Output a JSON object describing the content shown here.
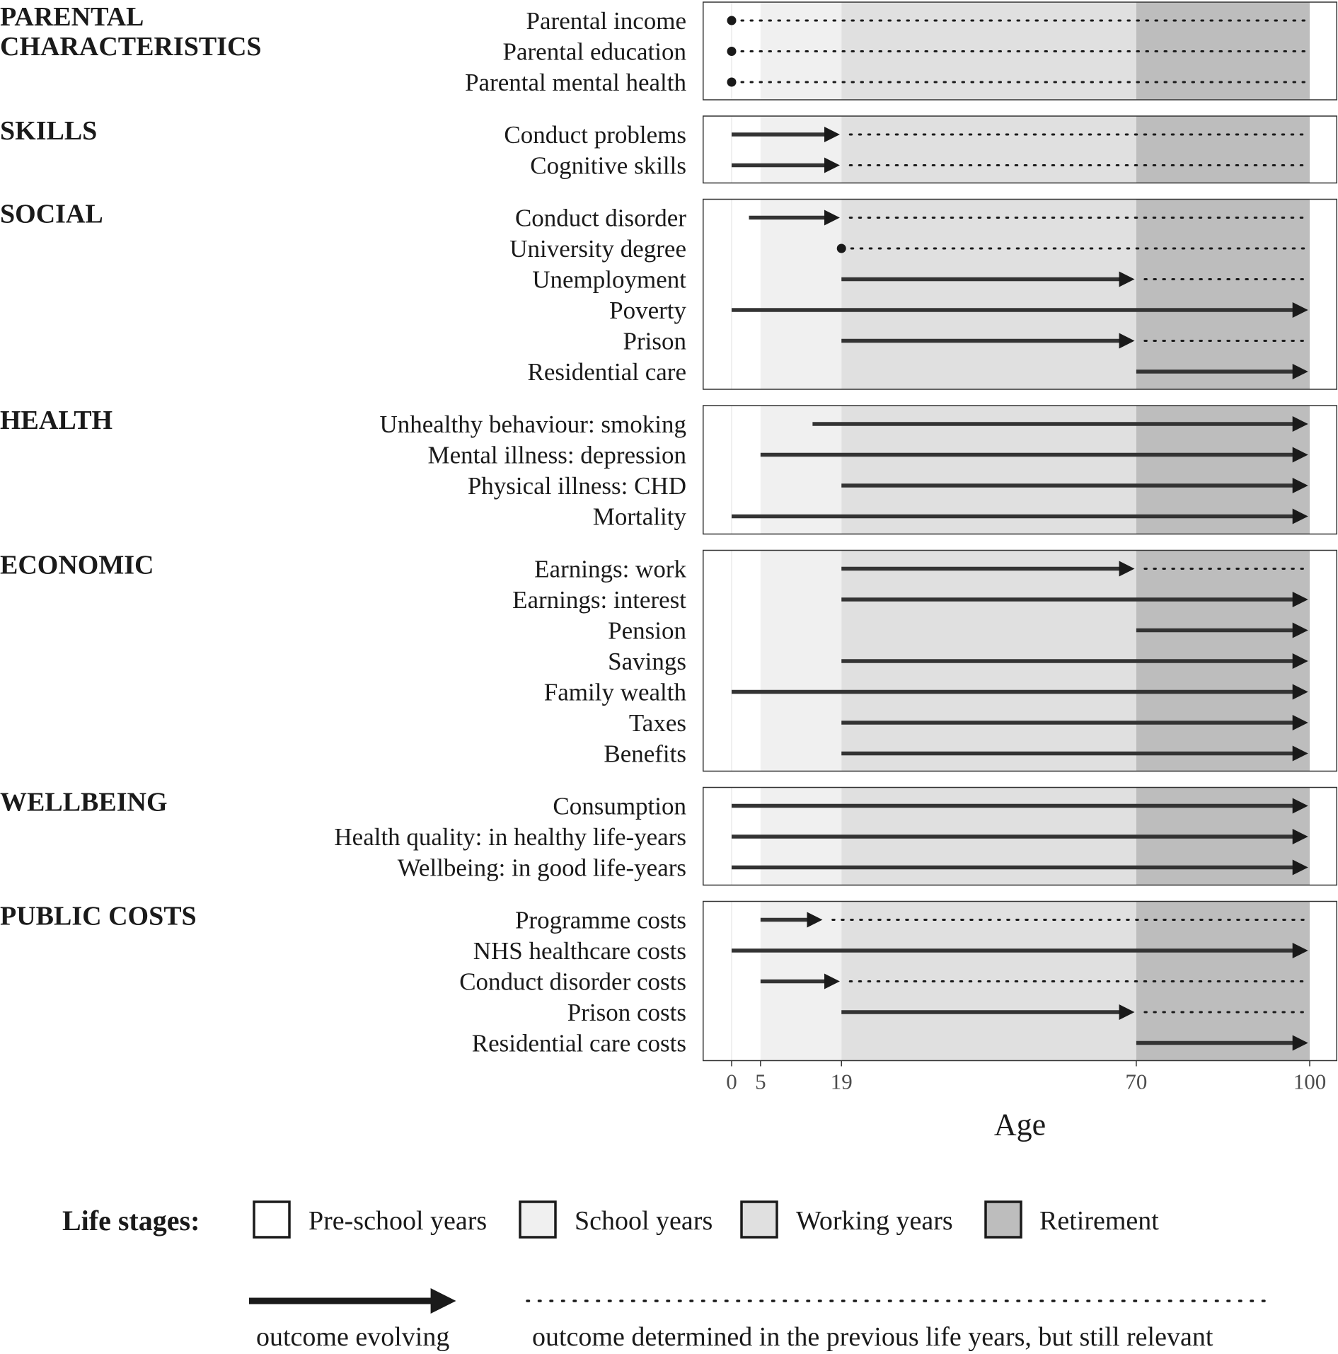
{
  "chart_data": {
    "type": "timeline",
    "xlabel": "Age",
    "x_ticks": [
      0,
      5,
      19,
      70,
      100
    ],
    "xlim": [
      0,
      100
    ],
    "life_stages": [
      {
        "name": "Pre-school years",
        "from": 0,
        "to": 5,
        "color": "#ffffff"
      },
      {
        "name": "School years",
        "from": 5,
        "to": 19,
        "color": "#f0f0f0"
      },
      {
        "name": "Working years",
        "from": 19,
        "to": 70,
        "color": "#e0e0e0"
      },
      {
        "name": "Retirement",
        "from": 70,
        "to": 100,
        "color": "#bdbdbd"
      }
    ],
    "groups": [
      {
        "title": "PARENTAL\nCHARACTERISTICS",
        "rows": [
          {
            "label": "Parental income",
            "type": "point",
            "evolve_start": 0,
            "evolve_end": 0,
            "dotted_end": 100
          },
          {
            "label": "Parental education",
            "type": "point",
            "evolve_start": 0,
            "evolve_end": 0,
            "dotted_end": 100
          },
          {
            "label": "Parental mental health",
            "type": "point",
            "evolve_start": 0,
            "evolve_end": 0,
            "dotted_end": 100
          }
        ]
      },
      {
        "title": "SKILLS",
        "rows": [
          {
            "label": "Conduct problems",
            "type": "arrow",
            "evolve_start": 0,
            "evolve_end": 19,
            "dotted_end": 100
          },
          {
            "label": "Cognitive skills",
            "type": "arrow",
            "evolve_start": 0,
            "evolve_end": 19,
            "dotted_end": 100
          }
        ]
      },
      {
        "title": "SOCIAL",
        "rows": [
          {
            "label": "Conduct disorder",
            "type": "arrow",
            "evolve_start": 3,
            "evolve_end": 19,
            "dotted_end": 100
          },
          {
            "label": "University degree",
            "type": "point",
            "evolve_start": 19,
            "evolve_end": 19,
            "dotted_end": 100
          },
          {
            "label": "Unemployment",
            "type": "arrow",
            "evolve_start": 19,
            "evolve_end": 70,
            "dotted_end": 100
          },
          {
            "label": "Poverty",
            "type": "arrow",
            "evolve_start": 0,
            "evolve_end": 100,
            "dotted_end": null
          },
          {
            "label": "Prison",
            "type": "arrow",
            "evolve_start": 19,
            "evolve_end": 70,
            "dotted_end": 100
          },
          {
            "label": "Residential care",
            "type": "arrow",
            "evolve_start": 70,
            "evolve_end": 100,
            "dotted_end": null
          }
        ]
      },
      {
        "title": "HEALTH",
        "rows": [
          {
            "label": "Unhealthy behaviour: smoking",
            "type": "arrow",
            "evolve_start": 14,
            "evolve_end": 100,
            "dotted_end": null
          },
          {
            "label": "Mental illness: depression",
            "type": "arrow",
            "evolve_start": 5,
            "evolve_end": 100,
            "dotted_end": null
          },
          {
            "label": "Physical illness: CHD",
            "type": "arrow",
            "evolve_start": 19,
            "evolve_end": 100,
            "dotted_end": null
          },
          {
            "label": "Mortality",
            "type": "arrow",
            "evolve_start": 0,
            "evolve_end": 100,
            "dotted_end": null
          }
        ]
      },
      {
        "title": "ECONOMIC",
        "rows": [
          {
            "label": "Earnings: work",
            "type": "arrow",
            "evolve_start": 19,
            "evolve_end": 70,
            "dotted_end": 100
          },
          {
            "label": "Earnings: interest",
            "type": "arrow",
            "evolve_start": 19,
            "evolve_end": 100,
            "dotted_end": null
          },
          {
            "label": "Pension",
            "type": "arrow",
            "evolve_start": 70,
            "evolve_end": 100,
            "dotted_end": null
          },
          {
            "label": "Savings",
            "type": "arrow",
            "evolve_start": 19,
            "evolve_end": 100,
            "dotted_end": null
          },
          {
            "label": "Family wealth",
            "type": "arrow",
            "evolve_start": 0,
            "evolve_end": 100,
            "dotted_end": null
          },
          {
            "label": "Taxes",
            "type": "arrow",
            "evolve_start": 19,
            "evolve_end": 100,
            "dotted_end": null
          },
          {
            "label": "Benefits",
            "type": "arrow",
            "evolve_start": 19,
            "evolve_end": 100,
            "dotted_end": null
          }
        ]
      },
      {
        "title": "WELLBEING",
        "rows": [
          {
            "label": "Consumption",
            "type": "arrow",
            "evolve_start": 0,
            "evolve_end": 100,
            "dotted_end": null
          },
          {
            "label": "Health quality: in healthy life-years",
            "type": "arrow",
            "evolve_start": 0,
            "evolve_end": 100,
            "dotted_end": null
          },
          {
            "label": "Wellbeing: in good life-years",
            "type": "arrow",
            "evolve_start": 0,
            "evolve_end": 100,
            "dotted_end": null
          }
        ]
      },
      {
        "title": "PUBLIC COSTS",
        "rows": [
          {
            "label": "Programme costs",
            "type": "arrow",
            "evolve_start": 5,
            "evolve_end": 16,
            "dotted_end": 100
          },
          {
            "label": "NHS healthcare costs",
            "type": "arrow",
            "evolve_start": 0,
            "evolve_end": 100,
            "dotted_end": null
          },
          {
            "label": "Conduct disorder costs",
            "type": "arrow",
            "evolve_start": 5,
            "evolve_end": 19,
            "dotted_end": 100
          },
          {
            "label": "Prison costs",
            "type": "arrow",
            "evolve_start": 19,
            "evolve_end": 70,
            "dotted_end": 100
          },
          {
            "label": "Residential care costs",
            "type": "arrow",
            "evolve_start": 70,
            "evolve_end": 100,
            "dotted_end": null
          }
        ]
      }
    ],
    "legend": {
      "stages_title": "Life stages:",
      "stage_items": [
        "Pre-school years",
        "School years",
        "Working years",
        "Retirement"
      ],
      "evolving_label": "outcome evolving",
      "determined_label": "outcome determined in the previous life years, but still relevant"
    }
  }
}
